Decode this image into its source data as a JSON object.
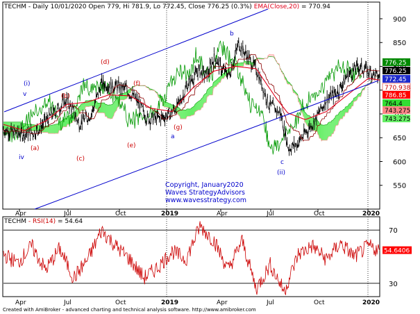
{
  "header": {
    "symbol": "TECHM",
    "info": " - Daily 10/01/2020 Open 779, Hi 781.9, Lo 772.45, Close 776.25 (0.3%) ",
    "ema_label": "EMA(Close,20)",
    "ema_value": " = 770.94"
  },
  "rsi_header": {
    "symbol": "TECHM",
    "label": " - RSI(14)",
    "value": " = 54.64"
  },
  "copyright": {
    "line1": "Copyright, January2020",
    "line2": "Waves StrategyAdvisors",
    "line3": "www.wavesstrategy.com"
  },
  "footer": "Created with AmiBroker - advanced charting and technical analysis software. http://www.amibroker.com",
  "colors": {
    "price": "#000000",
    "ema": "#e0001a",
    "kijun": "#8b0000",
    "lagging": "#009900",
    "cloud_bull": "#66ee66",
    "cloud_bear": "#ffcccc",
    "channel": "#0000cc",
    "rsi": "#cc0000",
    "wave_red": "#cc0000",
    "wave_blue": "#0000cc"
  },
  "chart_data": [
    {
      "type": "line",
      "title": "TECHM - Daily",
      "ylim": [
        500,
        935
      ],
      "y_ticks": [
        550,
        600,
        650,
        700,
        750,
        800,
        850,
        900
      ],
      "x_ticks": [
        "Apr",
        "Jul",
        "Oct",
        "2019",
        "Apr",
        "Jul",
        "Oct",
        "2020"
      ],
      "series": [
        {
          "name": "TECHM",
          "x": [
            0,
            25,
            45,
            70,
            90,
            108,
            125,
            140,
            160,
            175,
            190,
            205,
            222,
            237,
            250,
            262,
            278,
            290,
            300,
            312,
            322,
            335,
            348,
            362,
            378,
            395,
            406,
            418,
            430,
            445,
            460,
            475,
            490,
            505,
            520,
            536
          ],
          "values": [
            668,
            658,
            662,
            700,
            730,
            680,
            700,
            764,
            758,
            752,
            728,
            690,
            690,
            700,
            720,
            760,
            790,
            780,
            820,
            792,
            782,
            848,
            820,
            788,
            720,
            700,
            628,
            636,
            660,
            690,
            730,
            745,
            780,
            800,
            790,
            776
          ]
        },
        {
          "name": "EMA(Close,20)",
          "x": [
            0,
            30,
            60,
            90,
            120,
            150,
            180,
            210,
            240,
            270,
            300,
            330,
            360,
            390,
            405,
            430,
            460,
            490,
            520,
            536
          ],
          "values": [
            678,
            665,
            685,
            720,
            725,
            740,
            738,
            712,
            705,
            755,
            790,
            800,
            795,
            730,
            702,
            688,
            705,
            740,
            775,
            771
          ]
        }
      ],
      "value_labels": [
        "776.25",
        "776.25",
        "772.45",
        "770.938",
        "786.85",
        "764.4",
        "743.275",
        "743.275"
      ],
      "wave_labels": {
        "red": [
          "(a)",
          "(b)",
          "(c)",
          "(d)",
          "(e)",
          "(f)",
          "(g)"
        ],
        "blue": [
          "(i)",
          "v",
          "iv",
          "a",
          "b",
          "c",
          "(ii)"
        ]
      }
    },
    {
      "type": "line",
      "title": "TECHM - RSI(14)",
      "ylim": [
        20,
        80
      ],
      "y_ticks": [
        30,
        70
      ],
      "levels": [
        70,
        30
      ],
      "x_ticks": [
        "Apr",
        "Jul",
        "Oct",
        "2019",
        "Apr",
        "Jul",
        "Oct",
        "2020"
      ],
      "series": [
        {
          "name": "RSI(14)",
          "x": [
            0,
            20,
            40,
            60,
            80,
            100,
            120,
            140,
            160,
            180,
            200,
            220,
            240,
            260,
            280,
            300,
            320,
            340,
            360,
            380,
            400,
            420,
            440,
            460,
            480,
            500,
            520,
            536
          ],
          "values": [
            52,
            45,
            58,
            40,
            56,
            34,
            48,
            70,
            58,
            48,
            34,
            42,
            54,
            48,
            73,
            62,
            40,
            62,
            26,
            44,
            24,
            52,
            58,
            48,
            60,
            50,
            58,
            54.64
          ]
        }
      ],
      "value_label": "54.6406"
    }
  ]
}
